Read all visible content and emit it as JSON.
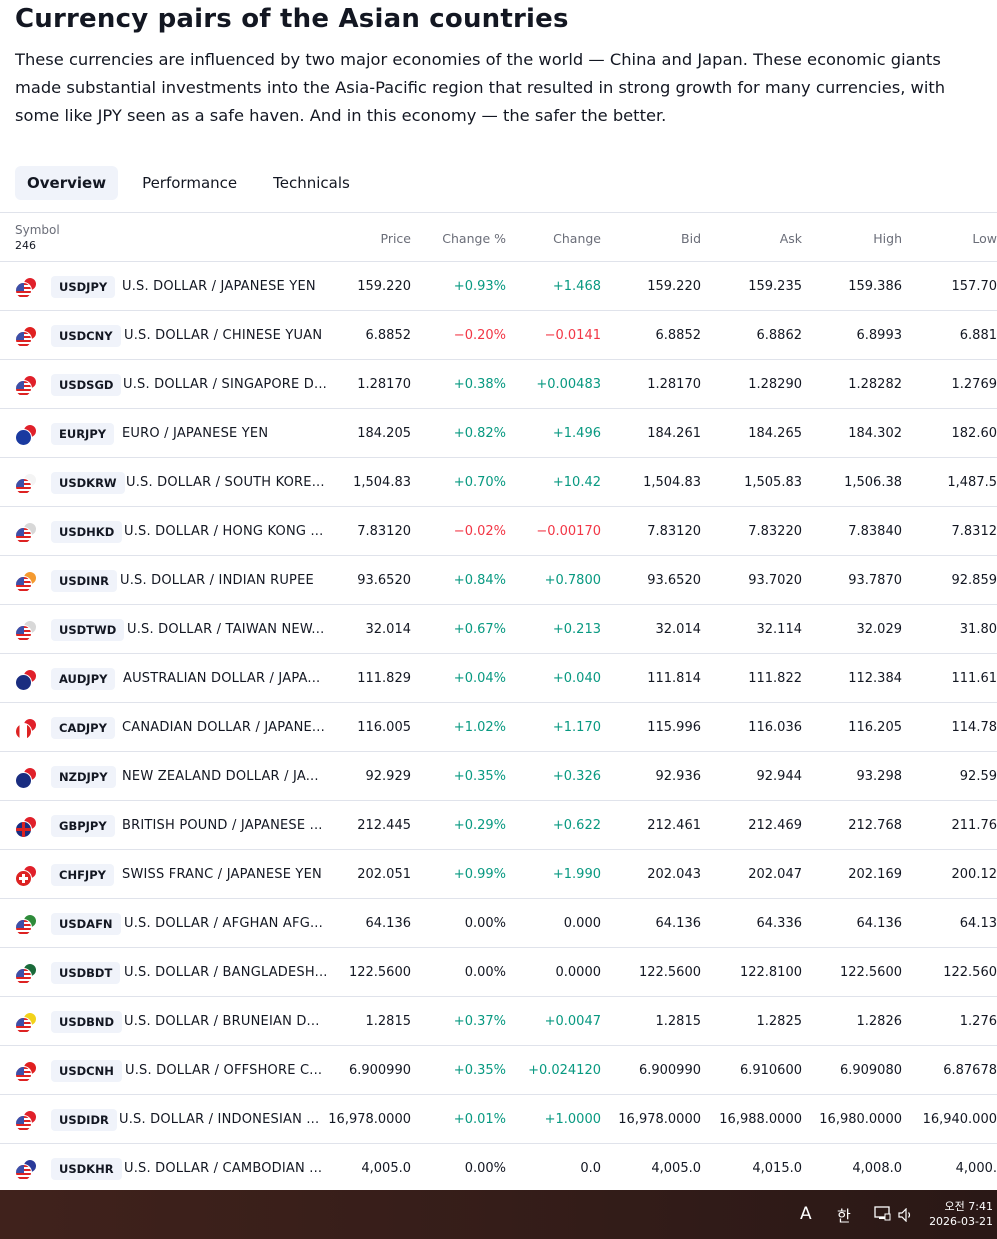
{
  "page": {
    "title": "Currency pairs of the Asian countries",
    "description": "These currencies are influenced by two major economies of the world — China and Japan. These economic giants made substantial investments into the Asia-Pacific region that resulted in strong growth for many currencies, with some like JPY seen as a safe haven. And in this economy — the safer the better."
  },
  "tabs": [
    {
      "label": "Overview",
      "active": true
    },
    {
      "label": "Performance",
      "active": false
    },
    {
      "label": "Technicals",
      "active": false
    }
  ],
  "table": {
    "symbol_header": "Symbol",
    "count": "246",
    "columns": [
      "Price",
      "Change %",
      "Change",
      "Bid",
      "Ask",
      "High",
      "Low"
    ],
    "rows": [
      {
        "ticker": "USDJPY",
        "name": "U.S. DOLLAR / JAPANESE YEN",
        "price": "159.220",
        "change_pct": "+0.93%",
        "change": "+1.468",
        "bid": "159.220",
        "ask": "159.235",
        "high": "159.386",
        "low": "157.70",
        "dir": "pos",
        "flag_front": "us",
        "flag_back": "#e0202a"
      },
      {
        "ticker": "USDCNY",
        "name": "U.S. DOLLAR / CHINESE YUAN",
        "price": "6.8852",
        "change_pct": "−0.20%",
        "change": "−0.0141",
        "bid": "6.8852",
        "ask": "6.8862",
        "high": "6.8993",
        "low": "6.881",
        "dir": "neg",
        "flag_front": "us",
        "flag_back": "#e02020"
      },
      {
        "ticker": "USDSGD",
        "name": "U.S. DOLLAR / SINGAPORE D...",
        "price": "1.28170",
        "change_pct": "+0.38%",
        "change": "+0.00483",
        "bid": "1.28170",
        "ask": "1.28290",
        "high": "1.28282",
        "low": "1.2769",
        "dir": "pos",
        "flag_front": "us",
        "flag_back": "#e0202a"
      },
      {
        "ticker": "EURJPY",
        "name": "EURO / JAPANESE YEN",
        "price": "184.205",
        "change_pct": "+0.82%",
        "change": "+1.496",
        "bid": "184.261",
        "ask": "184.265",
        "high": "184.302",
        "low": "182.60",
        "dir": "pos",
        "flag_front": "eu",
        "flag_back": "#e0202a"
      },
      {
        "ticker": "USDKRW",
        "name": "U.S. DOLLAR / SOUTH KORE...",
        "price": "1,504.83",
        "change_pct": "+0.70%",
        "change": "+10.42",
        "bid": "1,504.83",
        "ask": "1,505.83",
        "high": "1,506.38",
        "low": "1,487.5",
        "dir": "pos",
        "flag_front": "us",
        "flag_back": "#f4f4f4"
      },
      {
        "ticker": "USDHKD",
        "name": "U.S. DOLLAR / HONG KONG ...",
        "price": "7.83120",
        "change_pct": "−0.02%",
        "change": "−0.00170",
        "bid": "7.83120",
        "ask": "7.83220",
        "high": "7.83840",
        "low": "7.8312",
        "dir": "neg",
        "flag_front": "us",
        "flag_back": "#d8d8d8"
      },
      {
        "ticker": "USDINR",
        "name": "U.S. DOLLAR / INDIAN RUPEE",
        "price": "93.6520",
        "change_pct": "+0.84%",
        "change": "+0.7800",
        "bid": "93.6520",
        "ask": "93.7020",
        "high": "93.7870",
        "low": "92.859",
        "dir": "pos",
        "flag_front": "us",
        "flag_back": "#f49a30"
      },
      {
        "ticker": "USDTWD",
        "name": "U.S. DOLLAR / TAIWAN NEW...",
        "price": "32.014",
        "change_pct": "+0.67%",
        "change": "+0.213",
        "bid": "32.014",
        "ask": "32.114",
        "high": "32.029",
        "low": "31.80",
        "dir": "pos",
        "flag_front": "us",
        "flag_back": "#d8d8d8"
      },
      {
        "ticker": "AUDJPY",
        "name": "AUSTRALIAN DOLLAR / JAPA...",
        "price": "111.829",
        "change_pct": "+0.04%",
        "change": "+0.040",
        "bid": "111.814",
        "ask": "111.822",
        "high": "112.384",
        "low": "111.61",
        "dir": "pos",
        "flag_front": "au",
        "flag_back": "#e0202a"
      },
      {
        "ticker": "CADJPY",
        "name": "CANADIAN DOLLAR / JAPANE...",
        "price": "116.005",
        "change_pct": "+1.02%",
        "change": "+1.170",
        "bid": "115.996",
        "ask": "116.036",
        "high": "116.205",
        "low": "114.78",
        "dir": "pos",
        "flag_front": "ca",
        "flag_back": "#e0202a"
      },
      {
        "ticker": "NZDJPY",
        "name": "NEW ZEALAND DOLLAR / JA...",
        "price": "92.929",
        "change_pct": "+0.35%",
        "change": "+0.326",
        "bid": "92.936",
        "ask": "92.944",
        "high": "93.298",
        "low": "92.59",
        "dir": "pos",
        "flag_front": "nz",
        "flag_back": "#e0202a"
      },
      {
        "ticker": "GBPJPY",
        "name": "BRITISH POUND / JAPANESE ...",
        "price": "212.445",
        "change_pct": "+0.29%",
        "change": "+0.622",
        "bid": "212.461",
        "ask": "212.469",
        "high": "212.768",
        "low": "211.76",
        "dir": "pos",
        "flag_front": "gb",
        "flag_back": "#e0202a"
      },
      {
        "ticker": "CHFJPY",
        "name": "SWISS FRANC / JAPANESE YEN",
        "price": "202.051",
        "change_pct": "+0.99%",
        "change": "+1.990",
        "bid": "202.043",
        "ask": "202.047",
        "high": "202.169",
        "low": "200.12",
        "dir": "pos",
        "flag_front": "ch",
        "flag_back": "#e0202a"
      },
      {
        "ticker": "USDAFN",
        "name": "U.S. DOLLAR / AFGHAN AFG...",
        "price": "64.136",
        "change_pct": "0.00%",
        "change": "0.000",
        "bid": "64.136",
        "ask": "64.336",
        "high": "64.136",
        "low": "64.13",
        "dir": "flat",
        "flag_front": "us",
        "flag_back": "#2e8b3a"
      },
      {
        "ticker": "USDBDT",
        "name": "U.S. DOLLAR / BANGLADESH...",
        "price": "122.5600",
        "change_pct": "0.00%",
        "change": "0.0000",
        "bid": "122.5600",
        "ask": "122.8100",
        "high": "122.5600",
        "low": "122.560",
        "dir": "flat",
        "flag_front": "us",
        "flag_back": "#1a6a3a"
      },
      {
        "ticker": "USDBND",
        "name": "U.S. DOLLAR / BRUNEIAN D...",
        "price": "1.2815",
        "change_pct": "+0.37%",
        "change": "+0.0047",
        "bid": "1.2815",
        "ask": "1.2825",
        "high": "1.2826",
        "low": "1.276",
        "dir": "pos",
        "flag_front": "us",
        "flag_back": "#f2d21a"
      },
      {
        "ticker": "USDCNH",
        "name": "U.S. DOLLAR / OFFSHORE C...",
        "price": "6.900990",
        "change_pct": "+0.35%",
        "change": "+0.024120",
        "bid": "6.900990",
        "ask": "6.910600",
        "high": "6.909080",
        "low": "6.87678",
        "dir": "pos",
        "flag_front": "us",
        "flag_back": "#e02020"
      },
      {
        "ticker": "USDIDR",
        "name": "U.S. DOLLAR / INDONESIAN ...",
        "price": "16,978.0000",
        "change_pct": "+0.01%",
        "change": "+1.0000",
        "bid": "16,978.0000",
        "ask": "16,988.0000",
        "high": "16,980.0000",
        "low": "16,940.000",
        "dir": "pos",
        "flag_front": "us",
        "flag_back": "#e0202a"
      },
      {
        "ticker": "USDKHR",
        "name": "U.S. DOLLAR / CAMBODIAN ...",
        "price": "4,005.0",
        "change_pct": "0.00%",
        "change": "0.0",
        "bid": "4,005.0",
        "ask": "4,015.0",
        "high": "4,008.0",
        "low": "4,000.",
        "dir": "flat",
        "flag_front": "us",
        "flag_back": "#2a3a9a"
      }
    ]
  },
  "taskbar": {
    "ime_label": "A",
    "lang_label": "한",
    "time": "오전 7:41",
    "date": "2026-03-21"
  }
}
